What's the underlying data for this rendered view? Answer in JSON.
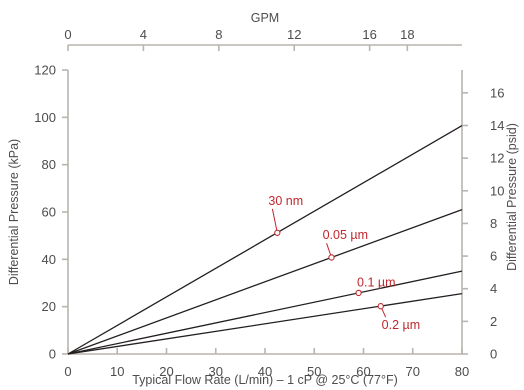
{
  "colors": {
    "axis": "#b9b4ae",
    "line": "#231f20",
    "label": "#c0272d",
    "text": "#4d4d4d"
  },
  "chart_data": {
    "type": "line",
    "xlabel": "Typical Flow Rate (L/min) – 1 cP @ 25°C (77°F)",
    "ylabel": "Differential Pressure (kPa)",
    "x2label": "GPM",
    "y2label": "Differential Pressure (psid)",
    "xlim": [
      0,
      80
    ],
    "ylim": [
      0,
      120
    ],
    "x2lim": [
      0,
      20.9
    ],
    "y2lim": [
      0,
      17.4
    ],
    "xticks": [
      0,
      10,
      20,
      30,
      40,
      50,
      60,
      70,
      80
    ],
    "yticks": [
      0,
      20,
      40,
      60,
      80,
      100,
      120
    ],
    "x2ticks": [
      0,
      4,
      8,
      12,
      16,
      18
    ],
    "y2ticks": [
      0,
      2,
      4,
      6,
      8,
      10,
      12,
      14,
      16
    ],
    "grid": false,
    "series": [
      {
        "name": "30 nm",
        "x": [
          0,
          80
        ],
        "y": [
          0,
          96.5
        ],
        "marker": {
          "x": 42.5,
          "y": 51.2
        },
        "label_at": {
          "x": 41.5,
          "y": 63
        }
      },
      {
        "name": "0.05 µm",
        "x": [
          0,
          80
        ],
        "y": [
          0,
          61
        ],
        "marker": {
          "x": 53.5,
          "y": 40.8
        },
        "label_at": {
          "x": 52.5,
          "y": 48.5
        }
      },
      {
        "name": "0.1 µm",
        "x": [
          0,
          80
        ],
        "y": [
          0,
          35
        ],
        "marker": {
          "x": 59,
          "y": 25.8
        },
        "label_at": {
          "x": 59.5,
          "y": 28.5
        }
      },
      {
        "name": "0.2 µm",
        "x": [
          0,
          80
        ],
        "y": [
          0,
          25.5
        ],
        "marker": {
          "x": 63.5,
          "y": 20.2
        },
        "label_at": {
          "x": 64.5,
          "y": 10.5
        }
      }
    ]
  }
}
